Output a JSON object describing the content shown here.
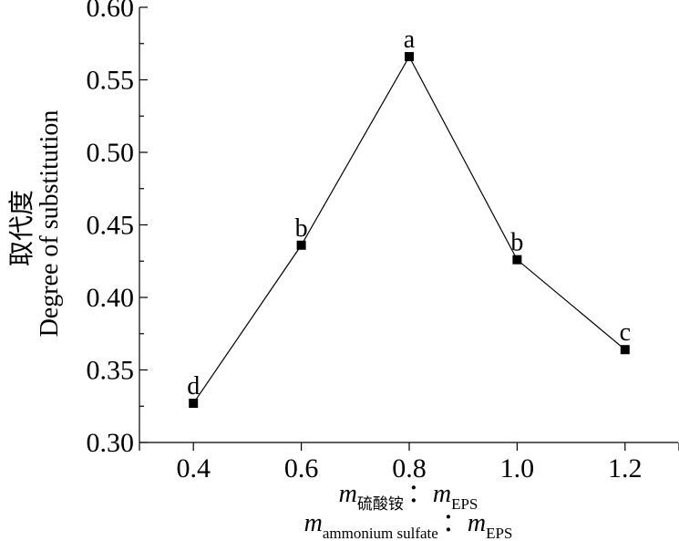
{
  "chart_data": {
    "type": "line",
    "x": [
      0.4,
      0.6,
      0.8,
      1.0,
      1.2
    ],
    "y": [
      0.327,
      0.436,
      0.566,
      0.426,
      0.364
    ],
    "point_labels": [
      "d",
      "b",
      "a",
      "b",
      "c"
    ],
    "xlim": [
      0.3,
      1.3
    ],
    "ylim": [
      0.3,
      0.6
    ],
    "x_ticks": [
      "0.4",
      "0.6",
      "0.8",
      "1.0",
      "1.2"
    ],
    "y_ticks": [
      "0.30",
      "0.35",
      "0.40",
      "0.45",
      "0.50",
      "0.55",
      "0.60"
    ],
    "ylabel_cn": "取代度",
    "ylabel_en": "Degree of substitution",
    "xlabel_line1": {
      "m1": "m",
      "sub1": "硫酸铵",
      "colon": "：",
      "m2": "m",
      "sub2": "EPS"
    },
    "xlabel_line2": {
      "m1": "m",
      "sub1": "ammonium sulfate",
      "colon": "：",
      "m2": "m",
      "sub2": "EPS"
    },
    "marker": "square",
    "grid": false,
    "colors": {
      "line": "#000000",
      "marker": "#000000"
    }
  }
}
